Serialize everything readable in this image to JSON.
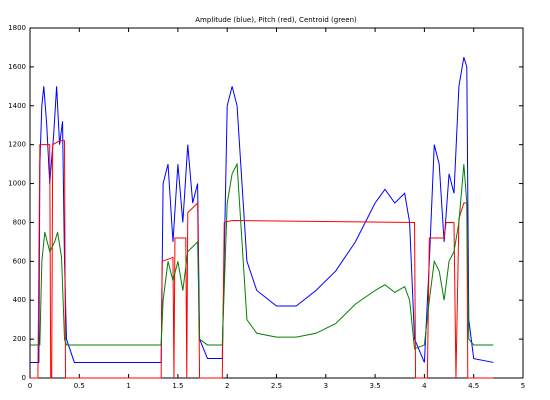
{
  "chart_data": {
    "type": "line",
    "title": "Amplitude  (blue),  Pitch  (red),  Centroid (green)",
    "xlim": [
      0,
      5
    ],
    "xticks": [
      0,
      0.5,
      1,
      1.5,
      2,
      2.5,
      3,
      3.5,
      4,
      4.5,
      5
    ],
    "ylim": [
      0,
      1800
    ],
    "yticks": [
      0,
      200,
      400,
      600,
      800,
      1000,
      1200,
      1400,
      1600,
      1800
    ],
    "grid": false,
    "series": [
      {
        "name": "Amplitude",
        "color": "#0000ff",
        "x": [
          0,
          0.09,
          0.1,
          0.12,
          0.14,
          0.17,
          0.2,
          0.24,
          0.27,
          0.3,
          0.33,
          0.35,
          0.37,
          0.45,
          1.33,
          1.35,
          1.4,
          1.45,
          1.5,
          1.55,
          1.6,
          1.65,
          1.7,
          1.72,
          1.8,
          1.95,
          2.0,
          2.05,
          2.1,
          2.15,
          2.2,
          2.3,
          2.5,
          2.7,
          2.9,
          3.1,
          3.3,
          3.5,
          3.6,
          3.7,
          3.8,
          3.85,
          3.9,
          4.0,
          4.05,
          4.1,
          4.15,
          4.2,
          4.25,
          4.3,
          4.35,
          4.4,
          4.43,
          4.45,
          4.5,
          4.7
        ],
        "values": [
          80,
          80,
          1100,
          1400,
          1500,
          1300,
          1000,
          1250,
          1500,
          1200,
          1320,
          600,
          200,
          80,
          80,
          1000,
          1100,
          700,
          1100,
          800,
          1200,
          900,
          1000,
          200,
          100,
          100,
          1400,
          1500,
          1400,
          1000,
          600,
          450,
          370,
          370,
          450,
          550,
          700,
          900,
          970,
          900,
          950,
          800,
          200,
          80,
          600,
          1200,
          1100,
          700,
          1050,
          950,
          1500,
          1650,
          1600,
          300,
          100,
          80
        ]
      },
      {
        "name": "Pitch",
        "color": "#ff0000",
        "x": [
          0,
          0.08,
          0.1,
          0.2,
          0.21,
          0.22,
          0.23,
          0.3,
          0.35,
          0.36,
          1.33,
          1.34,
          1.45,
          1.46,
          1.47,
          1.58,
          1.59,
          1.6,
          1.7,
          1.72,
          1.95,
          1.97,
          2.05,
          3.9,
          3.91,
          4.03,
          4.05,
          4.2,
          4.22,
          4.3,
          4.32,
          4.35,
          4.4,
          4.43,
          4.44,
          4.7
        ],
        "values": [
          0,
          0,
          1200,
          1200,
          0,
          0,
          1200,
          1220,
          1220,
          0,
          0,
          600,
          620,
          0,
          720,
          720,
          0,
          850,
          900,
          0,
          0,
          800,
          810,
          800,
          0,
          0,
          720,
          720,
          800,
          800,
          0,
          820,
          900,
          900,
          0,
          0
        ]
      },
      {
        "name": "Centroid",
        "color": "#008000",
        "x": [
          0,
          0.1,
          0.12,
          0.15,
          0.2,
          0.25,
          0.28,
          0.32,
          0.35,
          0.37,
          1.33,
          1.35,
          1.4,
          1.45,
          1.5,
          1.55,
          1.6,
          1.7,
          1.72,
          1.8,
          1.95,
          2.0,
          2.05,
          2.1,
          2.15,
          2.2,
          2.3,
          2.5,
          2.7,
          2.9,
          3.1,
          3.3,
          3.5,
          3.6,
          3.7,
          3.8,
          3.85,
          3.9,
          4.0,
          4.05,
          4.1,
          4.15,
          4.2,
          4.25,
          4.3,
          4.35,
          4.4,
          4.43,
          4.45,
          4.5,
          4.7
        ],
        "values": [
          170,
          170,
          600,
          750,
          650,
          700,
          750,
          620,
          200,
          170,
          170,
          400,
          600,
          500,
          600,
          450,
          650,
          700,
          200,
          170,
          170,
          900,
          1050,
          1100,
          700,
          300,
          230,
          210,
          210,
          230,
          280,
          380,
          450,
          480,
          440,
          470,
          400,
          150,
          170,
          400,
          600,
          550,
          400,
          600,
          650,
          800,
          1100,
          900,
          200,
          170,
          170
        ]
      }
    ]
  }
}
